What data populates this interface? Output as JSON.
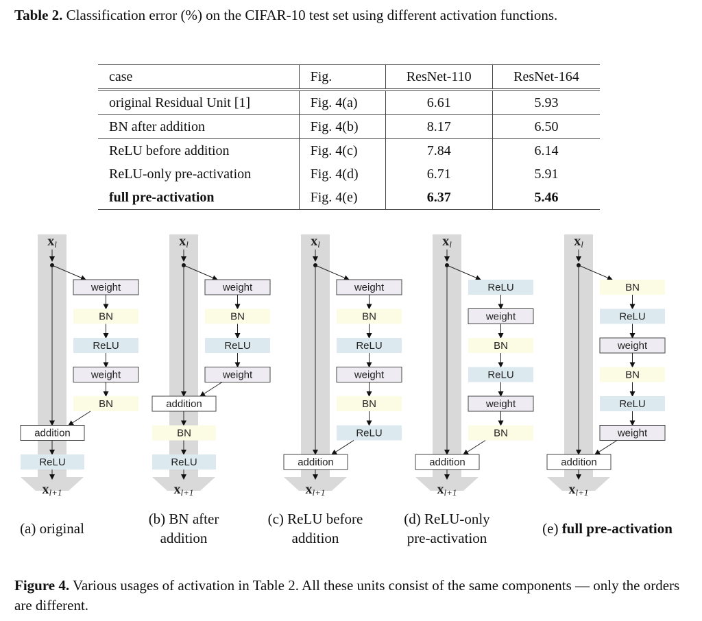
{
  "table_caption": {
    "label": "Table 2.",
    "text": "Classification error (%) on the CIFAR-10 test set using different activation functions."
  },
  "table": {
    "headers": [
      "case",
      "Fig.",
      "ResNet-110",
      "ResNet-164"
    ],
    "rows": [
      [
        "original Residual Unit [1]",
        "Fig. 4(a)",
        "6.61",
        "5.93"
      ],
      [
        "BN after addition",
        "Fig. 4(b)",
        "8.17",
        "6.50"
      ],
      [
        "ReLU before addition",
        "Fig. 4(c)",
        "7.84",
        "6.14"
      ],
      [
        "ReLU-only pre-activation",
        "Fig. 4(d)",
        "6.71",
        "5.91"
      ],
      [
        "full pre-activation",
        "Fig. 4(e)",
        "6.37",
        "5.46"
      ]
    ]
  },
  "figure": {
    "input_label": "x",
    "input_sub": "l",
    "output_label": "x",
    "output_sub": "l+1",
    "addition_label": "addition",
    "colors": {
      "weight": "#eeecf2",
      "BN": "#fcfbe4",
      "ReLU": "#dce9ef",
      "band": "#d9d9d9",
      "addition": "#ffffff"
    },
    "units": [
      {
        "branch": [
          "weight",
          "BN",
          "ReLU",
          "weight",
          "BN"
        ],
        "after": [
          "ReLU"
        ],
        "caption": [
          "(a) original"
        ],
        "bold": false
      },
      {
        "branch": [
          "weight",
          "BN",
          "ReLU",
          "weight"
        ],
        "after": [
          "BN",
          "ReLU"
        ],
        "caption": [
          "(b) BN after",
          "addition"
        ],
        "bold": false
      },
      {
        "branch": [
          "weight",
          "BN",
          "ReLU",
          "weight",
          "BN",
          "ReLU"
        ],
        "after": [],
        "caption": [
          "(c) ReLU before",
          "addition"
        ],
        "bold": false
      },
      {
        "branch": [
          "ReLU",
          "weight",
          "BN",
          "ReLU",
          "weight",
          "BN"
        ],
        "after": [],
        "caption": [
          "(d) ReLU-only",
          "pre-activation"
        ],
        "bold": false
      },
      {
        "branch": [
          "BN",
          "ReLU",
          "weight",
          "BN",
          "ReLU",
          "weight"
        ],
        "after": [],
        "caption": [
          "(e)",
          "full pre-activation"
        ],
        "bold": true
      }
    ]
  },
  "figure_caption": {
    "label": "Figure 4.",
    "text": "Various usages of activation in Table 2. All these units consist of the same components — only the orders are different."
  }
}
